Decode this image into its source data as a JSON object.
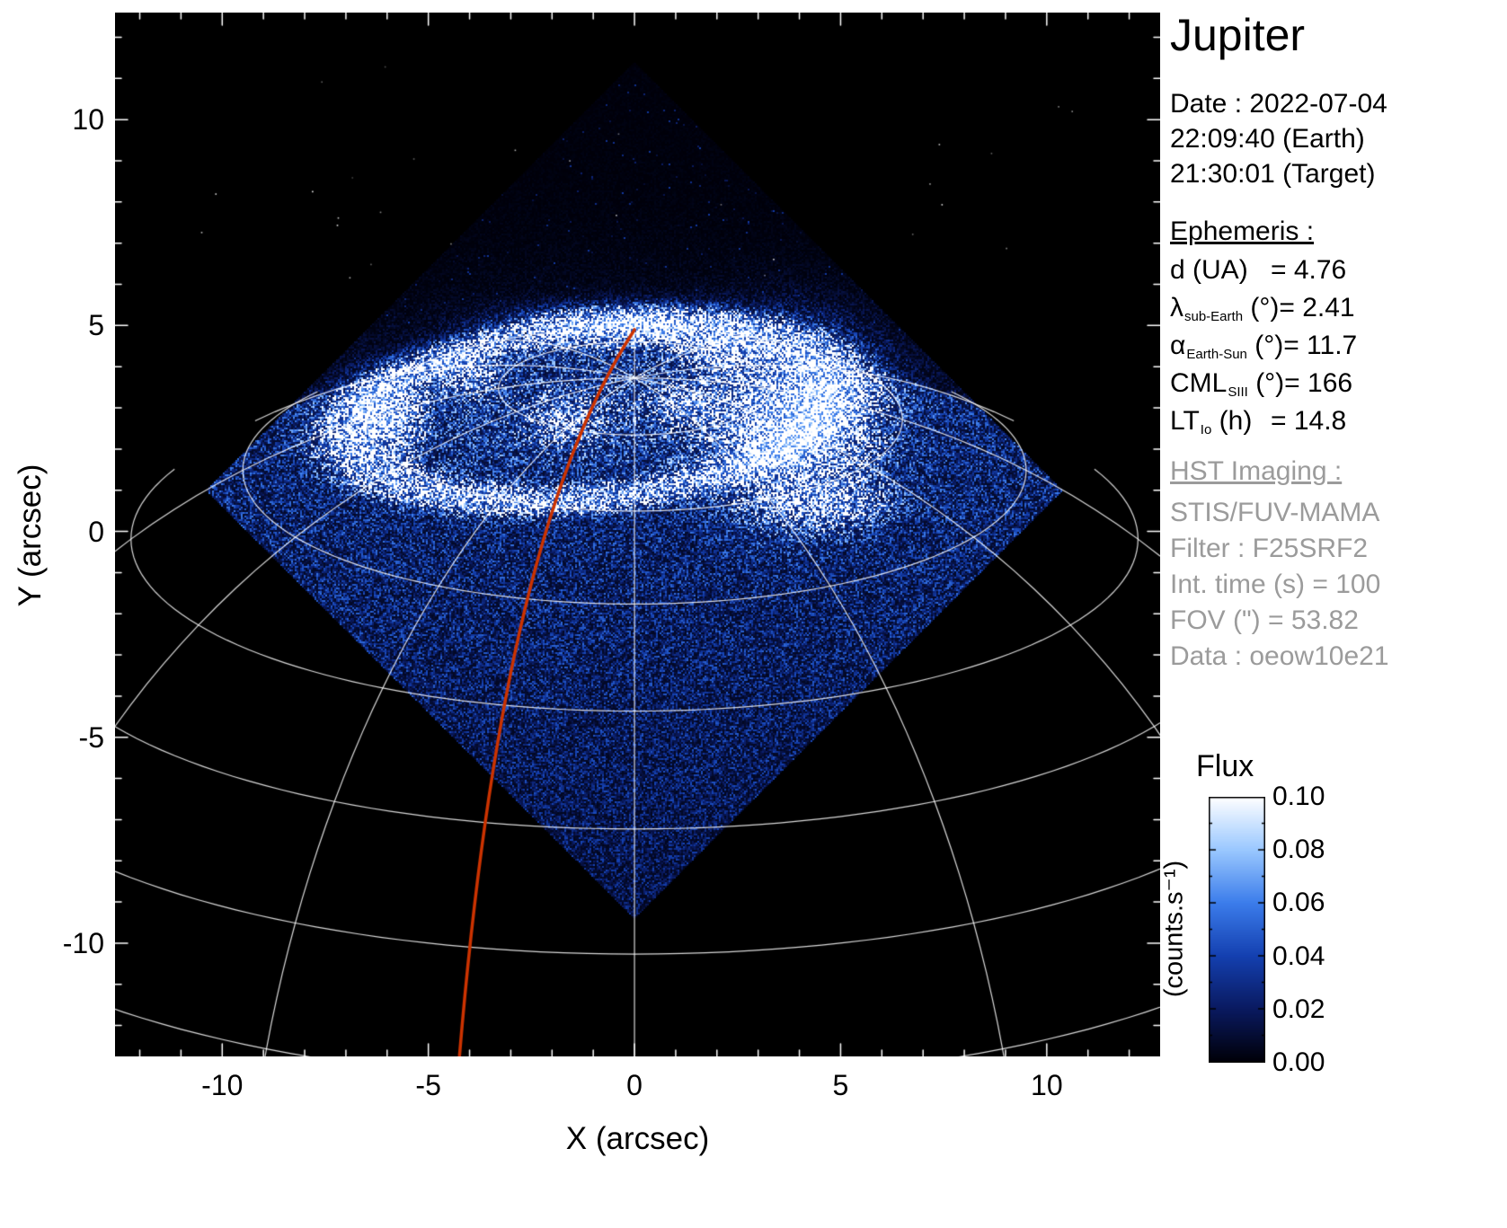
{
  "title": "Jupiter",
  "info_panel": {
    "date_line": "Date : 2022-07-04",
    "time_earth": "22:09:40 (Earth)",
    "time_target": "21:30:01 (Target)",
    "ephemeris_heading": "Ephemeris :",
    "ephemeris": [
      {
        "sym": "d",
        "sub": "",
        "unit": "(UA)",
        "val": "= 4.76"
      },
      {
        "sym": "λ",
        "sub": "sub-Earth",
        "unit": "(°)",
        "val": "= 2.41"
      },
      {
        "sym": "α",
        "sub": "Earth-Sun",
        "unit": "(°)",
        "val": "= 11.7"
      },
      {
        "sym": "CML",
        "sub": "SIII",
        "unit": "(°)",
        "val": "= 166"
      },
      {
        "sym": "LT",
        "sub": "Io",
        "unit": "(h)",
        "val": "= 14.8"
      }
    ],
    "hst_heading": "HST Imaging :",
    "hst_lines": [
      "STIS/FUV-MAMA",
      "Filter : F25SRF2",
      "Int. time (s) = 100",
      "FOV (\") = 53.82",
      "Data : oeow10e21"
    ]
  },
  "colorbar": {
    "title": "Flux",
    "unit": "(counts.s⁻¹)",
    "tick_labels": [
      "0.10",
      "0.08",
      "0.06",
      "0.04",
      "0.02",
      "0.00"
    ]
  },
  "chart_data": {
    "type": "heatmap",
    "description": "HST/STIS far-ultraviolet image of Jupiter's north polar aurora. The detector field of view is a square rotated 45 degrees (diamond) filled with noisy blue counts; a bright auroral oval sits near the top of the planet disk; a white planetocentric graticule is overplotted and a red curve marks the Io footprint meridian.",
    "xlabel": "X (arcsec)",
    "ylabel": "Y (arcsec)",
    "xlim": [
      -12.6,
      12.75
    ],
    "ylim": [
      -12.75,
      12.6
    ],
    "xticks": [
      -10,
      -5,
      0,
      5,
      10
    ],
    "yticks": [
      -10,
      -5,
      0,
      5,
      10
    ],
    "flux_range": [
      0.0,
      0.1
    ],
    "colormap_stops": [
      "#000008",
      "#0a1a60",
      "#1440b0",
      "#3c7deb",
      "#9ac8ff",
      "#ffffff"
    ],
    "detector_diamond": {
      "center": [
        0,
        1.0
      ],
      "half_diagonal": 10.4
    },
    "planet": {
      "limb_center_y": -13,
      "equatorial_radius": 19,
      "polar_radius": 17.8,
      "sub_observer_lat_deg": 20
    },
    "graticule": {
      "color": "#ffffff",
      "lat_min_deg": 10,
      "lat_max_deg": 80,
      "lat_step_deg": 10,
      "lon_step_deg": 30
    },
    "aurora_oval": {
      "center": [
        -1.0,
        2.9
      ],
      "semi_major": 5.9,
      "semi_minor": 2.1,
      "rotation_deg": -6,
      "ring_amp": 0.85,
      "ring_sigma": 0.1,
      "interior_amp": 0.18
    },
    "aurora_patches": [
      {
        "x": 3.8,
        "y": 2.7,
        "sx": 1.2,
        "sy": 1.2,
        "a": 1.25
      },
      {
        "x": -0.1,
        "y": 5.0,
        "sx": 1.7,
        "sy": 0.3,
        "a": 0.9
      },
      {
        "x": -6.0,
        "y": 2.8,
        "sx": 0.55,
        "sy": 0.55,
        "a": 0.85
      },
      {
        "x": -4.1,
        "y": 3.9,
        "sx": 0.5,
        "sy": 0.35,
        "a": 0.6
      },
      {
        "x": 4.6,
        "y": 0.7,
        "sx": 1.0,
        "sy": 0.4,
        "a": 0.6
      },
      {
        "x": -1.7,
        "y": 2.7,
        "sx": 0.5,
        "sy": 0.35,
        "a": 0.45
      },
      {
        "x": 1.2,
        "y": 3.1,
        "sx": 0.5,
        "sy": 0.3,
        "a": 0.5
      },
      {
        "x": 2.0,
        "y": 4.4,
        "sx": 0.6,
        "sy": 0.3,
        "a": 0.6
      }
    ],
    "io_track": {
      "color": "#cc3300",
      "points": [
        [
          0.0,
          4.9
        ],
        [
          -2.4,
          1.2
        ],
        [
          -3.6,
          -5.0
        ],
        [
          -4.25,
          -12.8
        ]
      ]
    }
  }
}
